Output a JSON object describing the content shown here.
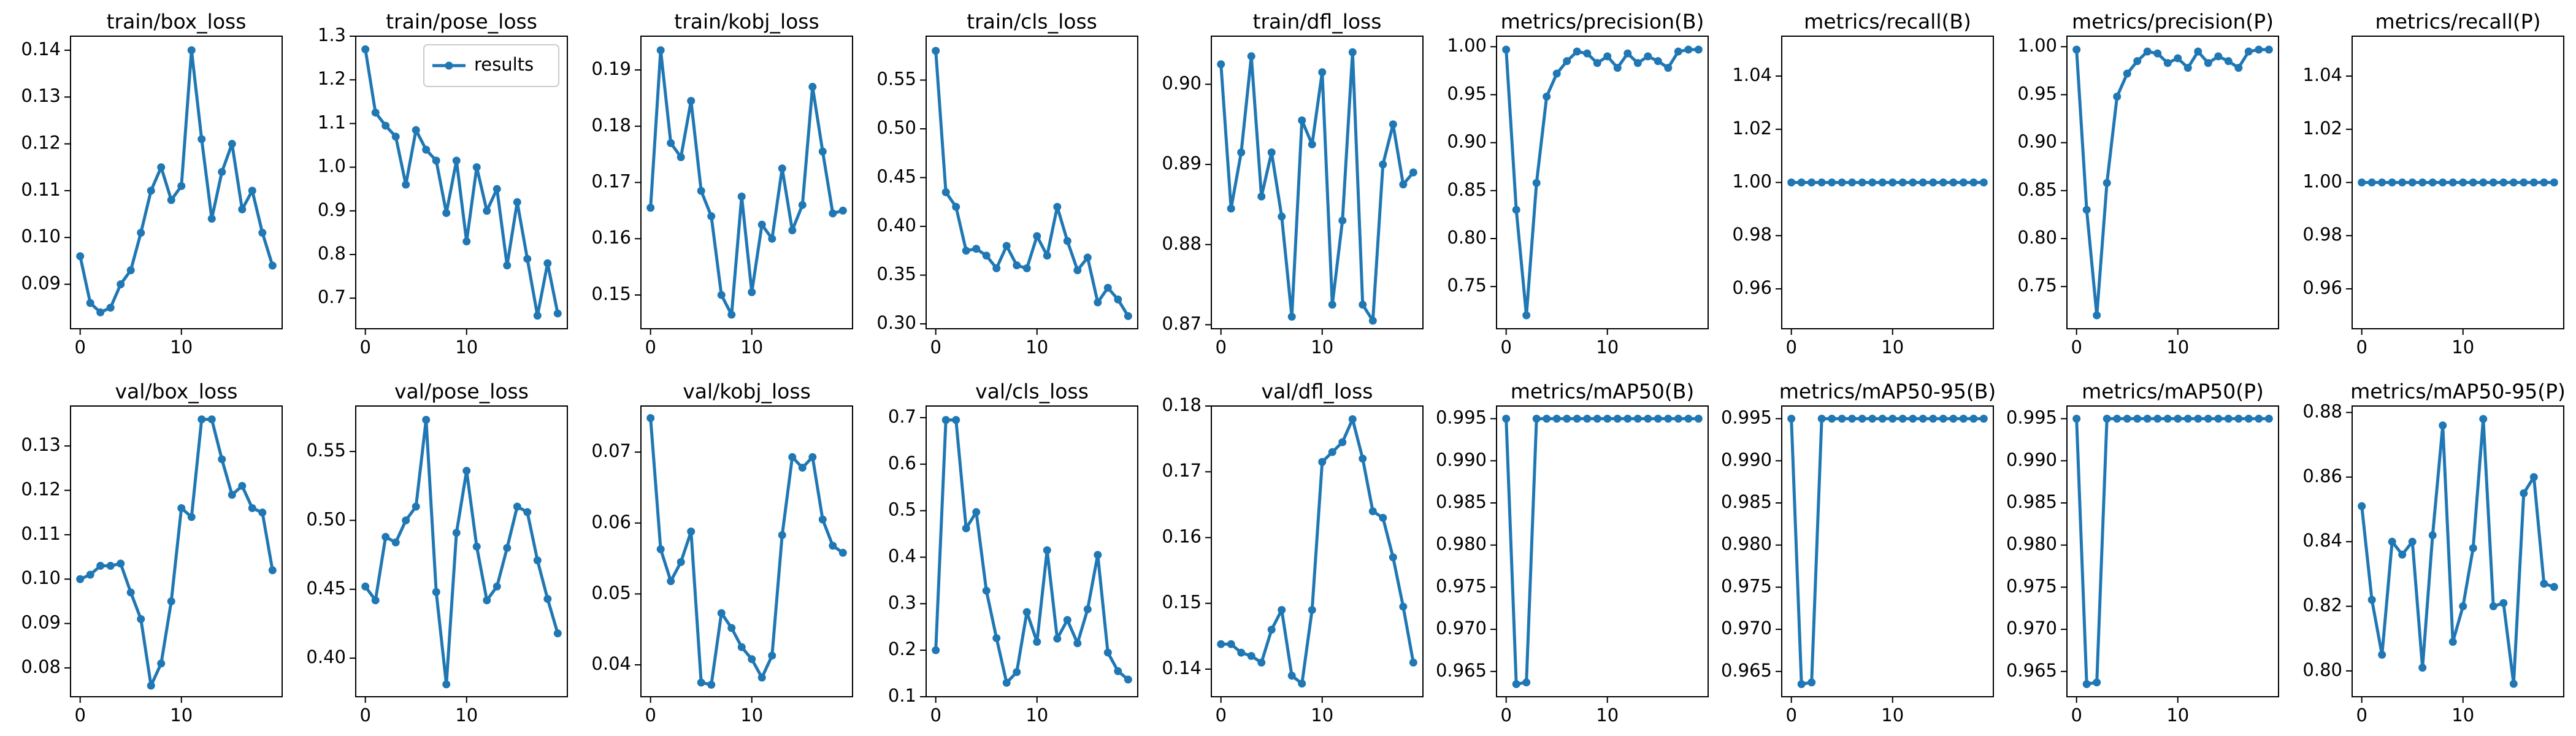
{
  "chart_data": [
    {
      "type": "line",
      "title": "train/box_loss",
      "color": "#1f77b4",
      "x": [
        0,
        1,
        2,
        3,
        4,
        5,
        6,
        7,
        8,
        9,
        10,
        11,
        12,
        13,
        14,
        15,
        16,
        17,
        18,
        19
      ],
      "values": [
        0.096,
        0.086,
        0.084,
        0.085,
        0.09,
        0.093,
        0.101,
        0.11,
        0.115,
        0.108,
        0.111,
        0.14,
        0.121,
        0.104,
        0.114,
        0.12,
        0.106,
        0.11,
        0.101,
        0.094
      ],
      "xlim": [
        -0.95,
        19.95
      ],
      "ylim": [
        0.0805,
        0.143
      ],
      "xticks": [
        0,
        10
      ],
      "yticks": [
        0.09,
        {
          "value": 0.1,
          "label": "0.10"
        },
        0.11,
        0.12,
        0.13,
        0.14
      ]
    },
    {
      "type": "line",
      "title": "train/pose_loss",
      "x": [
        0,
        1,
        2,
        3,
        4,
        5,
        6,
        7,
        8,
        9,
        10,
        11,
        12,
        13,
        14,
        15,
        16,
        17,
        18,
        19
      ],
      "series": [
        {
          "name": "results",
          "color": "#1f77b4",
          "values": [
            1.27,
            1.125,
            1.095,
            1.07,
            0.96,
            1.085,
            1.04,
            1.015,
            0.895,
            1.015,
            0.83,
            1.0,
            0.9,
            0.95,
            0.775,
            0.92,
            0.79,
            0.66,
            0.78,
            0.665
          ]
        }
      ],
      "legend": "upper right",
      "xlim": [
        -0.95,
        19.95
      ],
      "ylim": [
        0.63,
        1.3
      ],
      "xticks": [
        0,
        10
      ],
      "yticks": [
        0.7,
        0.8,
        0.9,
        {
          "value": 1,
          "label": "1.0"
        },
        1.1,
        1.2,
        1.3
      ]
    },
    {
      "type": "line",
      "title": "train/kobj_loss",
      "color": "#1f77b4",
      "x": [
        0,
        1,
        2,
        3,
        4,
        5,
        6,
        7,
        8,
        9,
        10,
        11,
        12,
        13,
        14,
        15,
        16,
        17,
        18,
        19
      ],
      "values": [
        0.1655,
        0.1935,
        0.177,
        0.1745,
        0.1845,
        0.1685,
        0.164,
        0.15,
        0.1465,
        0.1675,
        0.1505,
        0.1625,
        0.16,
        0.1725,
        0.1615,
        0.166,
        0.187,
        0.1755,
        0.1645,
        0.165
      ],
      "xlim": [
        -0.95,
        19.95
      ],
      "ylim": [
        0.144,
        0.196
      ],
      "xticks": [
        0,
        10
      ],
      "yticks": [
        0.15,
        0.16,
        0.17,
        0.18,
        0.19
      ]
    },
    {
      "type": "line",
      "title": "train/cls_loss",
      "color": "#1f77b4",
      "x": [
        0,
        1,
        2,
        3,
        4,
        5,
        6,
        7,
        8,
        9,
        10,
        11,
        12,
        13,
        14,
        15,
        16,
        17,
        18,
        19
      ],
      "values": [
        0.58,
        0.435,
        0.42,
        0.375,
        0.377,
        0.37,
        0.357,
        0.38,
        0.36,
        0.357,
        0.39,
        0.37,
        0.42,
        0.385,
        0.355,
        0.368,
        0.322,
        0.337,
        0.325,
        0.308
      ],
      "xlim": [
        -0.95,
        19.95
      ],
      "ylim": [
        0.295,
        0.595
      ],
      "xticks": [
        0,
        10
      ],
      "yticks": [
        {
          "value": 0.3,
          "label": "0.30"
        },
        0.35,
        {
          "value": 0.4,
          "label": "0.40"
        },
        0.45,
        {
          "value": 0.5,
          "label": "0.50"
        },
        0.55
      ]
    },
    {
      "type": "line",
      "title": "train/dfl_loss",
      "color": "#1f77b4",
      "x": [
        0,
        1,
        2,
        3,
        4,
        5,
        6,
        7,
        8,
        9,
        10,
        11,
        12,
        13,
        14,
        15,
        16,
        17,
        18,
        19
      ],
      "values": [
        0.9025,
        0.8845,
        0.8915,
        0.9035,
        0.886,
        0.8915,
        0.8835,
        0.871,
        0.8955,
        0.8925,
        0.9015,
        0.8725,
        0.883,
        0.904,
        0.8725,
        0.8705,
        0.89,
        0.895,
        0.8875,
        0.889
      ],
      "xlim": [
        -0.95,
        19.95
      ],
      "ylim": [
        0.8695,
        0.906
      ],
      "xticks": [
        0,
        10
      ],
      "yticks": [
        0.87,
        0.88,
        0.89,
        {
          "value": 0.9,
          "label": "0.90"
        }
      ]
    },
    {
      "type": "line",
      "title": "metrics/precision(B)",
      "color": "#1f77b4",
      "x": [
        0,
        1,
        2,
        3,
        4,
        5,
        6,
        7,
        8,
        9,
        10,
        11,
        12,
        13,
        14,
        15,
        16,
        17,
        18,
        19
      ],
      "values": [
        0.997,
        0.83,
        0.72,
        0.858,
        0.948,
        0.972,
        0.985,
        0.995,
        0.993,
        0.983,
        0.99,
        0.978,
        0.993,
        0.983,
        0.99,
        0.985,
        0.978,
        0.995,
        0.997,
        0.997
      ],
      "xlim": [
        -0.95,
        19.95
      ],
      "ylim": [
        0.706,
        1.011
      ],
      "xticks": [
        0,
        10
      ],
      "yticks": [
        0.75,
        {
          "value": 0.8,
          "label": "0.80"
        },
        0.85,
        {
          "value": 0.9,
          "label": "0.90"
        },
        0.95,
        {
          "value": 1,
          "label": "1.00"
        }
      ]
    },
    {
      "type": "line",
      "title": "metrics/recall(B)",
      "color": "#1f77b4",
      "x": [
        0,
        1,
        2,
        3,
        4,
        5,
        6,
        7,
        8,
        9,
        10,
        11,
        12,
        13,
        14,
        15,
        16,
        17,
        18,
        19
      ],
      "values": [
        1,
        1,
        1,
        1,
        1,
        1,
        1,
        1,
        1,
        1,
        1,
        1,
        1,
        1,
        1,
        1,
        1,
        1,
        1,
        1
      ],
      "xlim": [
        -0.95,
        19.95
      ],
      "ylim": [
        0.945,
        1.055
      ],
      "xticks": [
        0,
        10
      ],
      "yticks": [
        0.96,
        0.98,
        {
          "value": 1,
          "label": "1.00"
        },
        1.02,
        1.04
      ]
    },
    {
      "type": "line",
      "title": "metrics/precision(P)",
      "color": "#1f77b4",
      "x": [
        0,
        1,
        2,
        3,
        4,
        5,
        6,
        7,
        8,
        9,
        10,
        11,
        12,
        13,
        14,
        15,
        16,
        17,
        18,
        19
      ],
      "values": [
        0.997,
        0.83,
        0.72,
        0.858,
        0.948,
        0.972,
        0.985,
        0.995,
        0.993,
        0.983,
        0.988,
        0.978,
        0.995,
        0.983,
        0.99,
        0.985,
        0.978,
        0.995,
        0.997,
        0.997
      ],
      "xlim": [
        -0.95,
        19.95
      ],
      "ylim": [
        0.706,
        1.011
      ],
      "xticks": [
        0,
        10
      ],
      "yticks": [
        0.75,
        {
          "value": 0.8,
          "label": "0.80"
        },
        0.85,
        {
          "value": 0.9,
          "label": "0.90"
        },
        0.95,
        {
          "value": 1,
          "label": "1.00"
        }
      ]
    },
    {
      "type": "line",
      "title": "metrics/recall(P)",
      "color": "#1f77b4",
      "x": [
        0,
        1,
        2,
        3,
        4,
        5,
        6,
        7,
        8,
        9,
        10,
        11,
        12,
        13,
        14,
        15,
        16,
        17,
        18,
        19
      ],
      "values": [
        1,
        1,
        1,
        1,
        1,
        1,
        1,
        1,
        1,
        1,
        1,
        1,
        1,
        1,
        1,
        1,
        1,
        1,
        1,
        1
      ],
      "xlim": [
        -0.95,
        19.95
      ],
      "ylim": [
        0.945,
        1.055
      ],
      "xticks": [
        0,
        10
      ],
      "yticks": [
        0.96,
        0.98,
        {
          "value": 1,
          "label": "1.00"
        },
        1.02,
        1.04
      ]
    },
    {
      "type": "line",
      "title": "val/box_loss",
      "color": "#1f77b4",
      "x": [
        0,
        1,
        2,
        3,
        4,
        5,
        6,
        7,
        8,
        9,
        10,
        11,
        12,
        13,
        14,
        15,
        16,
        17,
        18,
        19
      ],
      "values": [
        0.1,
        0.101,
        0.103,
        0.103,
        0.1035,
        0.097,
        0.091,
        0.076,
        0.081,
        0.095,
        0.116,
        0.114,
        0.136,
        0.136,
        0.127,
        0.119,
        0.121,
        0.116,
        0.115,
        0.102
      ],
      "xlim": [
        -0.95,
        19.95
      ],
      "ylim": [
        0.0735,
        0.139
      ],
      "xticks": [
        0,
        10
      ],
      "yticks": [
        0.08,
        0.09,
        {
          "value": 0.1,
          "label": "0.10"
        },
        0.11,
        0.12,
        0.13
      ]
    },
    {
      "type": "line",
      "title": "val/pose_loss",
      "color": "#1f77b4",
      "x": [
        0,
        1,
        2,
        3,
        4,
        5,
        6,
        7,
        8,
        9,
        10,
        11,
        12,
        13,
        14,
        15,
        16,
        17,
        18,
        19
      ],
      "values": [
        0.452,
        0.442,
        0.488,
        0.484,
        0.5,
        0.51,
        0.573,
        0.448,
        0.381,
        0.491,
        0.536,
        0.481,
        0.442,
        0.452,
        0.48,
        0.51,
        0.506,
        0.471,
        0.443,
        0.418
      ],
      "xlim": [
        -0.95,
        19.95
      ],
      "ylim": [
        0.372,
        0.583
      ],
      "xticks": [
        0,
        10
      ],
      "yticks": [
        {
          "value": 0.4,
          "label": "0.40"
        },
        0.45,
        {
          "value": 0.5,
          "label": "0.50"
        },
        0.55
      ]
    },
    {
      "type": "line",
      "title": "val/kobj_loss",
      "color": "#1f77b4",
      "x": [
        0,
        1,
        2,
        3,
        4,
        5,
        6,
        7,
        8,
        9,
        10,
        11,
        12,
        13,
        14,
        15,
        16,
        17,
        18,
        19
      ],
      "values": [
        0.0748,
        0.0563,
        0.0518,
        0.0545,
        0.0588,
        0.0375,
        0.0372,
        0.0473,
        0.0452,
        0.0425,
        0.0408,
        0.0382,
        0.0413,
        0.0583,
        0.0693,
        0.0678,
        0.0693,
        0.0605,
        0.0568,
        0.0558
      ],
      "xlim": [
        -0.95,
        19.95
      ],
      "ylim": [
        0.0355,
        0.0765
      ],
      "xticks": [
        0,
        10
      ],
      "yticks": [
        0.04,
        0.05,
        0.06,
        0.07
      ]
    },
    {
      "type": "line",
      "title": "val/cls_loss",
      "color": "#1f77b4",
      "x": [
        0,
        1,
        2,
        3,
        4,
        5,
        6,
        7,
        8,
        9,
        10,
        11,
        12,
        13,
        14,
        15,
        16,
        17,
        18,
        19
      ],
      "values": [
        0.2,
        0.695,
        0.695,
        0.462,
        0.497,
        0.328,
        0.226,
        0.13,
        0.153,
        0.282,
        0.218,
        0.415,
        0.225,
        0.265,
        0.215,
        0.288,
        0.405,
        0.195,
        0.155,
        0.137
      ],
      "xlim": [
        -0.95,
        19.95
      ],
      "ylim": [
        0.1,
        0.725
      ],
      "xticks": [
        0,
        10
      ],
      "yticks": [
        0.1,
        0.2,
        0.3,
        0.4,
        0.5,
        0.6,
        0.7
      ]
    },
    {
      "type": "line",
      "title": "val/dfl_loss",
      "color": "#1f77b4",
      "x": [
        0,
        1,
        2,
        3,
        4,
        5,
        6,
        7,
        8,
        9,
        10,
        11,
        12,
        13,
        14,
        15,
        16,
        17,
        18,
        19
      ],
      "values": [
        0.1438,
        0.1438,
        0.1425,
        0.142,
        0.141,
        0.146,
        0.149,
        0.139,
        0.1378,
        0.149,
        0.1715,
        0.173,
        0.1745,
        0.178,
        0.172,
        0.164,
        0.163,
        0.157,
        0.1495,
        0.141
      ],
      "xlim": [
        -0.95,
        19.95
      ],
      "ylim": [
        0.1358,
        0.18
      ],
      "xticks": [
        0,
        10
      ],
      "yticks": [
        0.14,
        0.15,
        0.16,
        0.17,
        0.18
      ]
    },
    {
      "type": "line",
      "title": "metrics/mAP50(B)",
      "color": "#1f77b4",
      "x": [
        0,
        1,
        2,
        3,
        4,
        5,
        6,
        7,
        8,
        9,
        10,
        11,
        12,
        13,
        14,
        15,
        16,
        17,
        18,
        19
      ],
      "values": [
        0.995,
        0.9635,
        0.9637,
        0.995,
        0.995,
        0.995,
        0.995,
        0.995,
        0.995,
        0.995,
        0.995,
        0.995,
        0.995,
        0.995,
        0.995,
        0.995,
        0.995,
        0.995,
        0.995,
        0.995
      ],
      "xlim": [
        -0.95,
        19.95
      ],
      "ylim": [
        0.962,
        0.9965
      ],
      "xticks": [
        0,
        10
      ],
      "yticks": [
        0.965,
        {
          "value": 0.97,
          "label": "0.970"
        },
        0.975,
        {
          "value": 0.98,
          "label": "0.980"
        },
        0.985,
        {
          "value": 0.99,
          "label": "0.990"
        },
        0.995
      ]
    },
    {
      "type": "line",
      "title": "metrics/mAP50-95(B)",
      "color": "#1f77b4",
      "x": [
        0,
        1,
        2,
        3,
        4,
        5,
        6,
        7,
        8,
        9,
        10,
        11,
        12,
        13,
        14,
        15,
        16,
        17,
        18,
        19
      ],
      "values": [
        0.995,
        0.9635,
        0.9637,
        0.995,
        0.995,
        0.995,
        0.995,
        0.995,
        0.995,
        0.995,
        0.995,
        0.995,
        0.995,
        0.995,
        0.995,
        0.995,
        0.995,
        0.995,
        0.995,
        0.995
      ],
      "xlim": [
        -0.95,
        19.95
      ],
      "ylim": [
        0.962,
        0.9965
      ],
      "xticks": [
        0,
        10
      ],
      "yticks": [
        0.965,
        {
          "value": 0.97,
          "label": "0.970"
        },
        0.975,
        {
          "value": 0.98,
          "label": "0.980"
        },
        0.985,
        {
          "value": 0.99,
          "label": "0.990"
        },
        0.995
      ]
    },
    {
      "type": "line",
      "title": "metrics/mAP50(P)",
      "color": "#1f77b4",
      "x": [
        0,
        1,
        2,
        3,
        4,
        5,
        6,
        7,
        8,
        9,
        10,
        11,
        12,
        13,
        14,
        15,
        16,
        17,
        18,
        19
      ],
      "values": [
        0.995,
        0.9635,
        0.9637,
        0.995,
        0.995,
        0.995,
        0.995,
        0.995,
        0.995,
        0.995,
        0.995,
        0.995,
        0.995,
        0.995,
        0.995,
        0.995,
        0.995,
        0.995,
        0.995,
        0.995
      ],
      "xlim": [
        -0.95,
        19.95
      ],
      "ylim": [
        0.962,
        0.9965
      ],
      "xticks": [
        0,
        10
      ],
      "yticks": [
        0.965,
        {
          "value": 0.97,
          "label": "0.970"
        },
        0.975,
        {
          "value": 0.98,
          "label": "0.980"
        },
        0.985,
        {
          "value": 0.99,
          "label": "0.990"
        },
        0.995
      ]
    },
    {
      "type": "line",
      "title": "metrics/mAP50-95(P)",
      "color": "#1f77b4",
      "x": [
        0,
        1,
        2,
        3,
        4,
        5,
        6,
        7,
        8,
        9,
        10,
        11,
        12,
        13,
        14,
        15,
        16,
        17,
        18,
        19
      ],
      "values": [
        0.851,
        0.822,
        0.805,
        0.84,
        0.836,
        0.84,
        0.801,
        0.842,
        0.876,
        0.809,
        0.82,
        0.838,
        0.878,
        0.82,
        0.821,
        0.796,
        0.855,
        0.86,
        0.827,
        0.826
      ],
      "xlim": [
        -0.95,
        19.95
      ],
      "ylim": [
        0.792,
        0.882
      ],
      "xticks": [
        0,
        10
      ],
      "yticks": [
        {
          "value": 0.8,
          "label": "0.80"
        },
        0.82,
        0.84,
        0.86,
        0.88
      ]
    }
  ]
}
